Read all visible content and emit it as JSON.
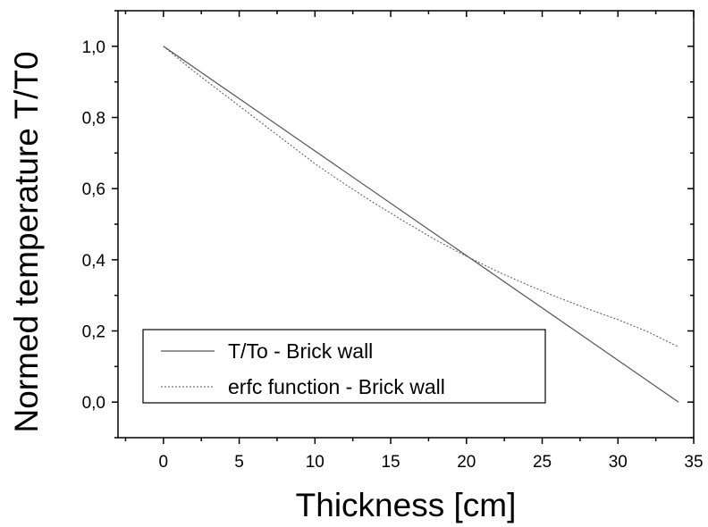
{
  "chart_data": {
    "type": "line",
    "xlabel": "Thickness [cm]",
    "ylabel": "Normed temperature T/T0",
    "xlim": [
      -3,
      35
    ],
    "ylim": [
      -0.1,
      1.1
    ],
    "x_ticks": [
      {
        "value": 0,
        "label": "0"
      },
      {
        "value": 5,
        "label": "5"
      },
      {
        "value": 10,
        "label": "10"
      },
      {
        "value": 15,
        "label": "15"
      },
      {
        "value": 20,
        "label": "20"
      },
      {
        "value": 25,
        "label": "25"
      },
      {
        "value": 30,
        "label": "30"
      },
      {
        "value": 35,
        "label": "35"
      }
    ],
    "y_ticks": [
      {
        "value": 0.0,
        "label": "0,0"
      },
      {
        "value": 0.2,
        "label": "0,2"
      },
      {
        "value": 0.4,
        "label": "0,4"
      },
      {
        "value": 0.6,
        "label": "0,6"
      },
      {
        "value": 0.8,
        "label": "0,8"
      },
      {
        "value": 1.0,
        "label": "1,0"
      }
    ],
    "legend_position": "bottom-left",
    "series": [
      {
        "name": "T/To - Brick wall",
        "style": "solid",
        "color": "#555555",
        "x": [
          0,
          34
        ],
        "y": [
          1.0,
          0.0
        ]
      },
      {
        "name": "erfc function - Brick wall",
        "style": "dotted",
        "color": "#555555",
        "x": [
          0,
          2,
          4,
          6,
          8,
          10,
          12,
          14,
          16,
          18,
          20,
          22,
          24,
          26,
          28,
          30,
          32,
          34
        ],
        "y": [
          1.0,
          0.93,
          0.865,
          0.8,
          0.735,
          0.67,
          0.612,
          0.557,
          0.505,
          0.455,
          0.41,
          0.368,
          0.33,
          0.295,
          0.262,
          0.232,
          0.197,
          0.155
        ]
      }
    ]
  }
}
